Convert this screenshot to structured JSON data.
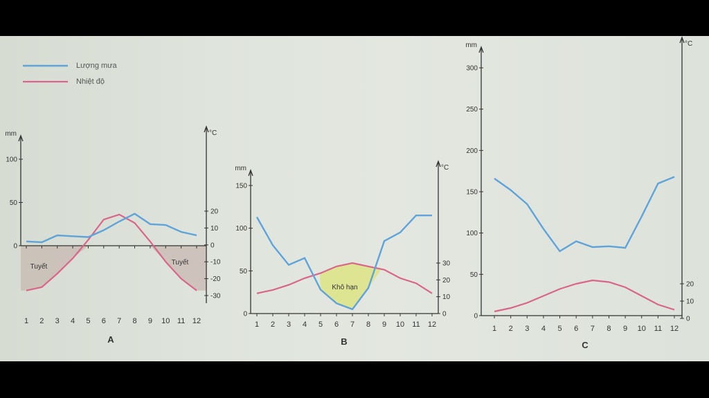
{
  "legend": {
    "rain_label": "Lượng mưa",
    "temp_label": "Nhiệt độ",
    "rain_color": "#5fa3d9",
    "temp_color": "#d9668a"
  },
  "colors": {
    "snow_fill": "#c7b8b2",
    "drought_fill": "#dde38a"
  },
  "chart_data": [
    {
      "type": "line",
      "panel_label": "A",
      "x": [
        1,
        2,
        3,
        4,
        5,
        6,
        7,
        8,
        9,
        10,
        11,
        12
      ],
      "series": [
        {
          "name": "Lượng mưa",
          "axis": "left",
          "values": [
            5,
            4,
            12,
            11,
            10,
            18,
            28,
            37,
            25,
            24,
            16,
            12
          ]
        },
        {
          "name": "Nhiệt độ",
          "axis": "right",
          "values": [
            -27,
            -25,
            -17,
            -8,
            3,
            15,
            18,
            13,
            2,
            -10,
            -20,
            -27
          ]
        }
      ],
      "y_left_unit": "mm",
      "y_left_ticks": [
        0,
        50,
        100
      ],
      "y_right_unit": "°C",
      "y_right_ticks": [
        -30,
        -20,
        -10,
        0,
        10,
        20
      ],
      "annotations": [
        "Tuyết",
        "Tuyết"
      ]
    },
    {
      "type": "line",
      "panel_label": "B",
      "x": [
        1,
        2,
        3,
        4,
        5,
        6,
        7,
        8,
        9,
        10,
        11,
        12
      ],
      "series": [
        {
          "name": "Lượng mưa",
          "axis": "left",
          "values": [
            113,
            80,
            57,
            65,
            28,
            12,
            5,
            30,
            85,
            95,
            115,
            115
          ]
        },
        {
          "name": "Nhiệt độ",
          "axis": "right",
          "values": [
            12,
            14,
            17,
            21,
            24,
            28,
            30,
            28,
            26,
            21,
            18,
            12
          ]
        }
      ],
      "y_left_unit": "mm",
      "y_left_ticks": [
        0,
        50,
        100,
        150
      ],
      "y_right_unit": "°C",
      "y_right_ticks": [
        0,
        10,
        20,
        30
      ],
      "annotations": [
        "Khô hạn"
      ]
    },
    {
      "type": "line",
      "panel_label": "C",
      "x": [
        1,
        2,
        3,
        4,
        5,
        6,
        7,
        8,
        9,
        10,
        11,
        12
      ],
      "series": [
        {
          "name": "Lượng mưa",
          "axis": "left",
          "values": [
            166,
            152,
            135,
            105,
            78,
            90,
            83,
            84,
            82,
            120,
            160,
            168
          ]
        },
        {
          "name": "Nhiệt độ",
          "axis": "right",
          "values": [
            4,
            6,
            9,
            13,
            17,
            20,
            22,
            21,
            18,
            13,
            8,
            5
          ]
        }
      ],
      "y_left_unit": "mm",
      "y_left_ticks": [
        0,
        50,
        100,
        150,
        200,
        250,
        300
      ],
      "y_right_unit": "°C",
      "y_right_ticks": [
        0,
        10,
        20
      ],
      "annotations": []
    }
  ]
}
